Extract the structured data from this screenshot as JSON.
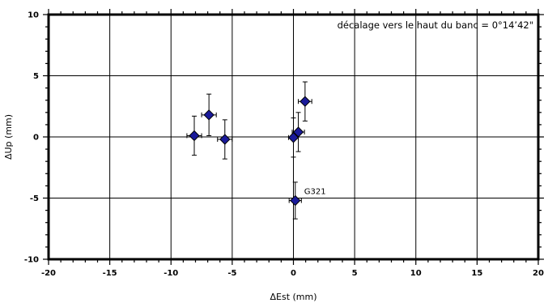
{
  "chart_data": {
    "type": "scatter",
    "xlabel": "ΔEst (mm)",
    "ylabel": "ΔUp (mm)",
    "xlim": [
      -20,
      20
    ],
    "ylim": [
      -10,
      10
    ],
    "xticks": [
      -20,
      -15,
      -10,
      -5,
      0,
      5,
      10,
      15,
      20
    ],
    "yticks": [
      -10,
      -5,
      0,
      5,
      10
    ],
    "grid": true,
    "annotation": "décalage vers le haut du banc = 0°14’42\"",
    "marker_color": "#1a1a9a",
    "points": [
      {
        "x": -8.1,
        "y": 0.1,
        "xerr": 0.6,
        "yerr": 1.6,
        "label": ""
      },
      {
        "x": -6.9,
        "y": 1.8,
        "xerr": 0.6,
        "yerr": 1.7,
        "label": ""
      },
      {
        "x": -5.6,
        "y": -0.2,
        "xerr": 0.6,
        "yerr": 1.6,
        "label": ""
      },
      {
        "x": 0.0,
        "y": -0.05,
        "xerr": 0.4,
        "yerr": 1.6,
        "label": ""
      },
      {
        "x": 0.4,
        "y": 0.4,
        "xerr": 0.5,
        "yerr": 1.6,
        "label": ""
      },
      {
        "x": 0.95,
        "y": 2.9,
        "xerr": 0.55,
        "yerr": 1.6,
        "label": ""
      },
      {
        "x": 0.15,
        "y": -5.2,
        "xerr": 0.5,
        "yerr": 1.5,
        "label": "G321"
      }
    ]
  }
}
